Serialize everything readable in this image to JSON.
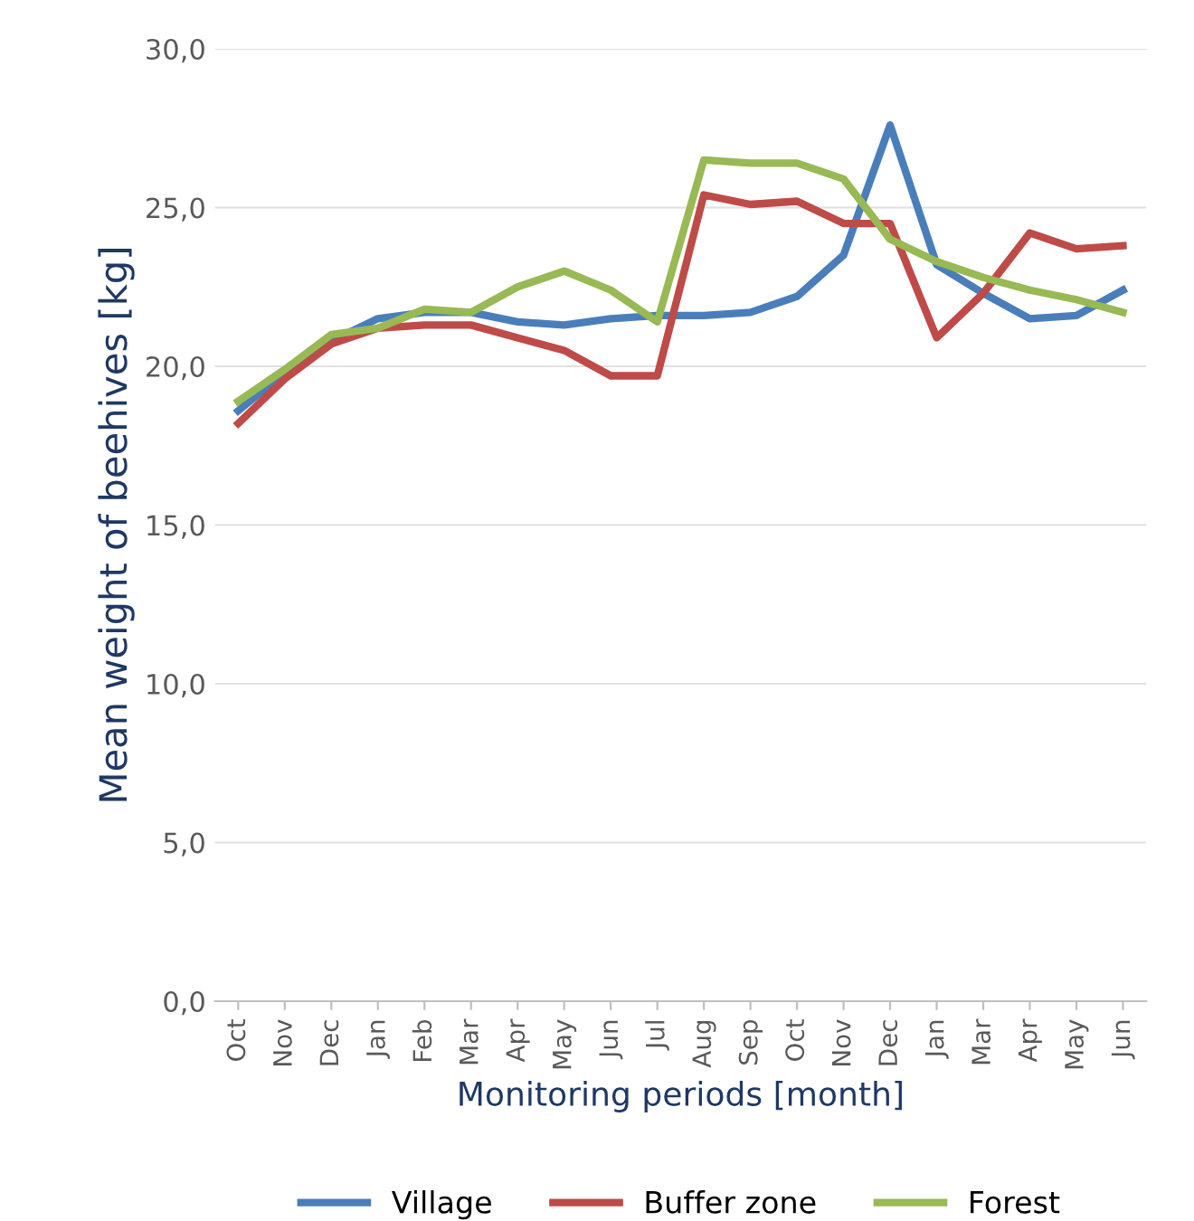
{
  "chart_data": {
    "type": "line",
    "xlabel": "Monitoring periods [month]",
    "ylabel": "Mean weight of beehives [kg]",
    "categories": [
      "Oct",
      "Nov",
      "Dec",
      "Jan",
      "Feb",
      "Mar",
      "Apr",
      "May",
      "Jun",
      "Jul",
      "Aug",
      "Sep",
      "Oct",
      "Nov",
      "Dec",
      "Jan",
      "Mar",
      "Apr",
      "May",
      "Jun"
    ],
    "series": [
      {
        "name": "Village",
        "color": "#4a7ebb",
        "values": [
          18.6,
          19.8,
          20.8,
          21.5,
          21.7,
          21.7,
          21.4,
          21.3,
          21.5,
          21.6,
          21.6,
          21.7,
          22.2,
          23.5,
          27.6,
          23.2,
          22.3,
          21.5,
          21.6,
          22.4
        ]
      },
      {
        "name": "Buffer zone",
        "color": "#be4b48",
        "values": [
          18.2,
          19.6,
          20.7,
          21.2,
          21.3,
          21.3,
          20.9,
          20.5,
          19.7,
          19.7,
          25.4,
          25.1,
          25.2,
          24.5,
          24.5,
          20.9,
          22.3,
          24.2,
          23.7,
          23.8
        ]
      },
      {
        "name": "Forest",
        "color": "#98b954",
        "values": [
          18.9,
          19.9,
          21.0,
          21.2,
          21.8,
          21.7,
          22.5,
          23.0,
          22.4,
          21.4,
          26.5,
          26.4,
          26.4,
          25.9,
          24.0,
          23.3,
          22.8,
          22.4,
          22.1,
          21.7
        ]
      }
    ],
    "ylim": [
      0,
      30
    ],
    "yticks": [
      {
        "value": 0,
        "label": "0,0"
      },
      {
        "value": 5,
        "label": "5,0"
      },
      {
        "value": 10,
        "label": "10,0"
      },
      {
        "value": 15,
        "label": "15,0"
      },
      {
        "value": 20,
        "label": "20,0"
      },
      {
        "value": 25,
        "label": "25,0"
      },
      {
        "value": 30,
        "label": "30,0"
      }
    ],
    "grid": "y",
    "legend": "bottom",
    "marker": "none",
    "line_style": "solid"
  }
}
